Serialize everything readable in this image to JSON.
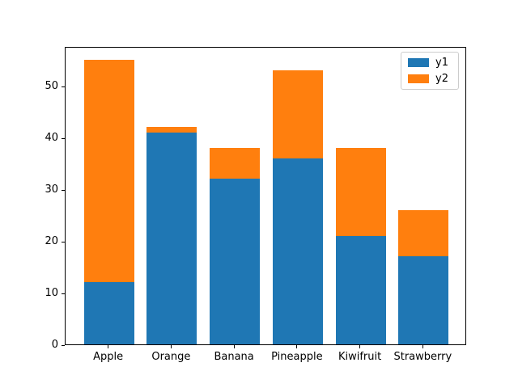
{
  "figure": {
    "background": "#ffffff",
    "title": ""
  },
  "chart_data": {
    "type": "bar",
    "stacked": true,
    "title": "",
    "xlabel": "",
    "ylabel": "",
    "categories": [
      "Apple",
      "Orange",
      "Banana",
      "Pineapple",
      "Kiwifruit",
      "Strawberry"
    ],
    "series": [
      {
        "name": "y1",
        "color": "#1f77b4",
        "values": [
          12,
          41,
          32,
          36,
          21,
          17
        ]
      },
      {
        "name": "y2",
        "color": "#ff7f0e",
        "values": [
          43,
          1,
          6,
          17,
          17,
          9
        ]
      }
    ],
    "ylim": [
      0,
      57.7
    ],
    "yticks": [
      0,
      10,
      20,
      30,
      40,
      50
    ],
    "grid": false,
    "bar_width": 0.8,
    "legend": {
      "position": "upper right",
      "entries": [
        "y1",
        "y2"
      ]
    },
    "axis_color": "#000000",
    "tick_label_color": "#000000"
  }
}
